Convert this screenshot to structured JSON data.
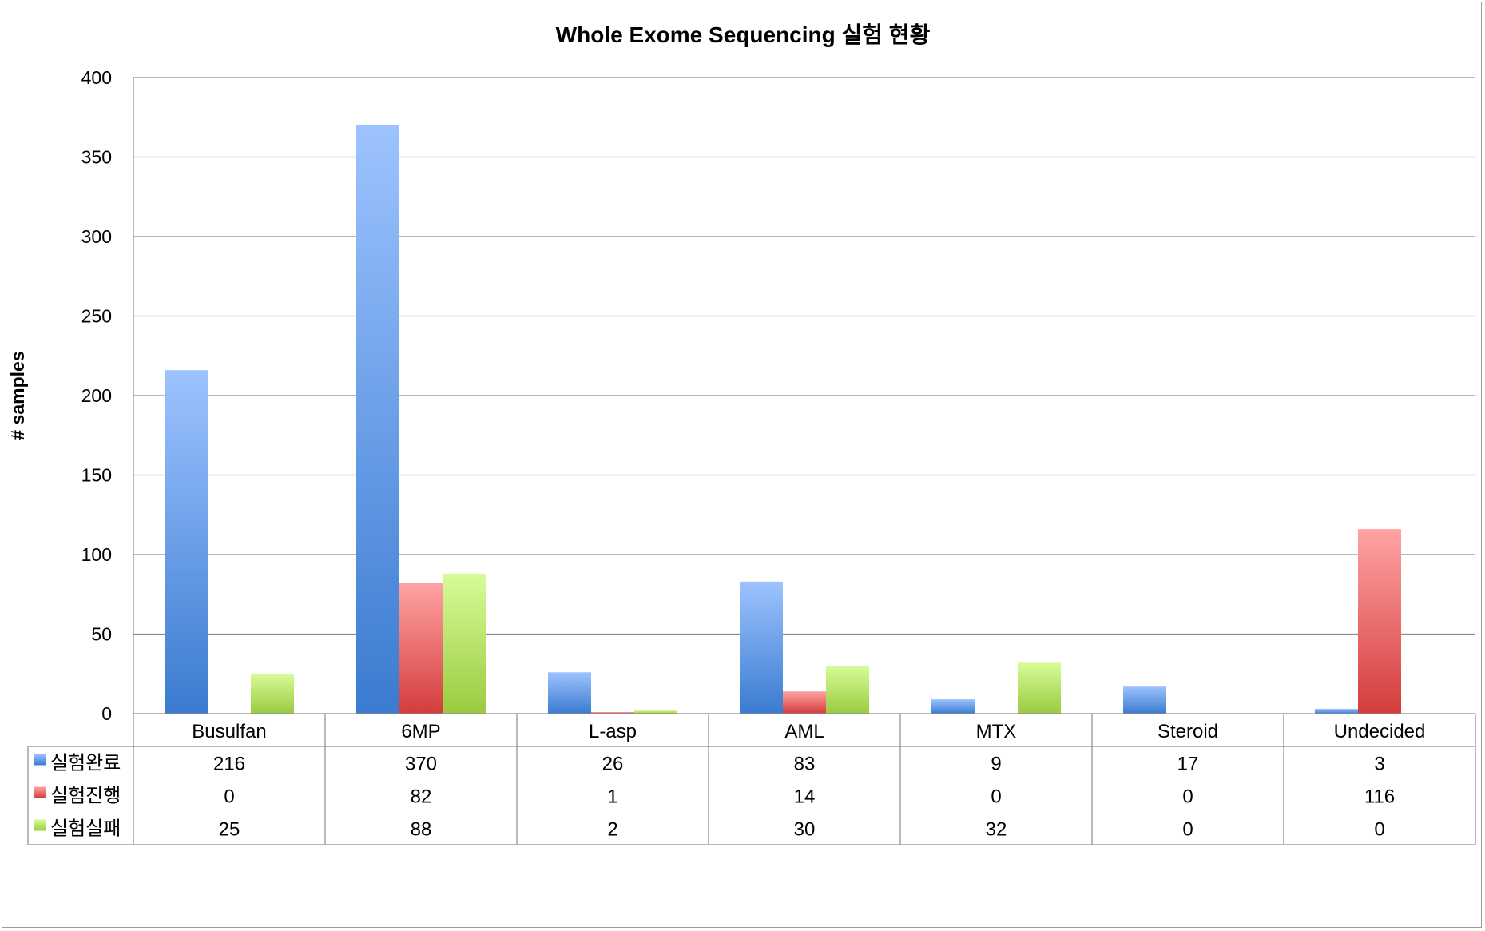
{
  "chart_data": {
    "type": "bar",
    "title": "Whole Exome Sequencing 실험 현황",
    "xlabel": "",
    "ylabel": "# samples",
    "ylim": [
      0,
      400
    ],
    "yticks": [
      0,
      50,
      100,
      150,
      200,
      250,
      300,
      350,
      400
    ],
    "grid": true,
    "legend_placement": "left of data table",
    "categories": [
      "Busulfan",
      "6MP",
      "L-asp",
      "AML",
      "MTX",
      "Steroid",
      "Undecided"
    ],
    "series": [
      {
        "name": "실험완료",
        "color": "#4f86d6",
        "values": [
          216,
          370,
          26,
          83,
          9,
          17,
          3
        ]
      },
      {
        "name": "실험진행",
        "color": "#e05252",
        "values": [
          0,
          82,
          1,
          14,
          0,
          0,
          116
        ]
      },
      {
        "name": "실험실패",
        "color": "#a8d65a",
        "values": [
          25,
          88,
          2,
          30,
          32,
          0,
          0
        ]
      }
    ],
    "data_table": true
  }
}
